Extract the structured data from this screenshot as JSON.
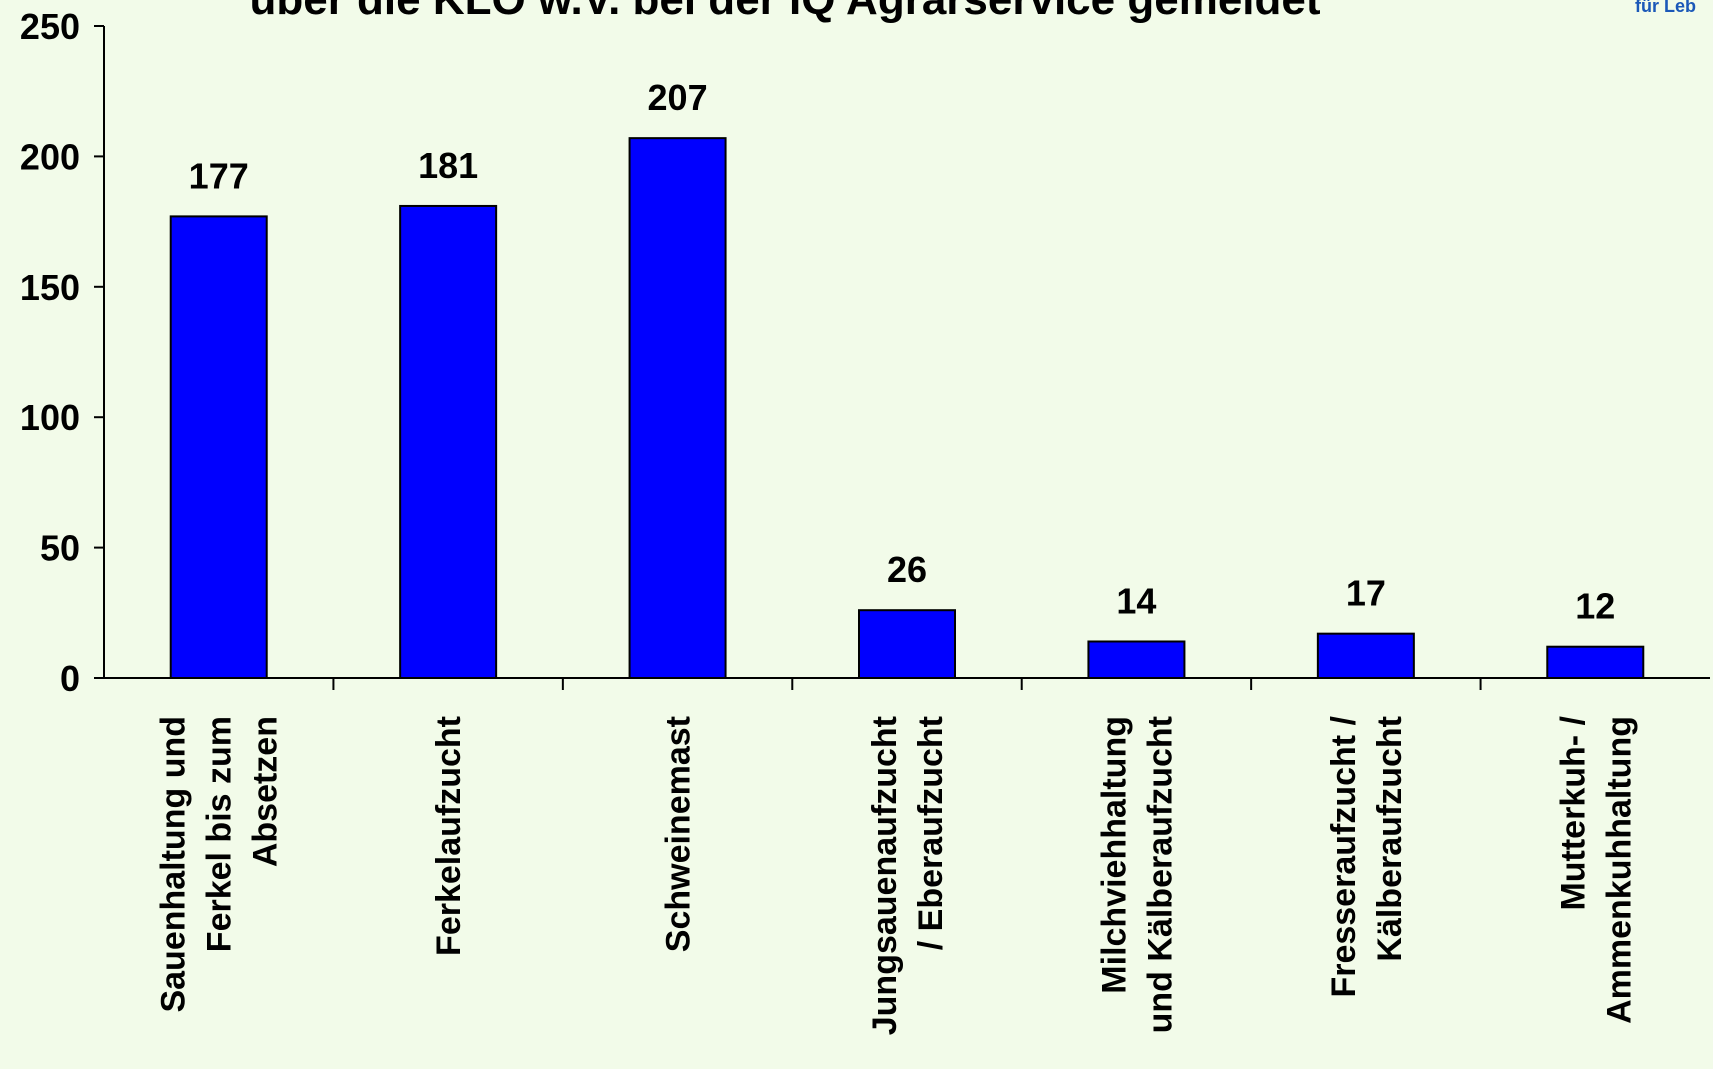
{
  "chart_data": {
    "type": "bar",
    "title": "über die KLO w.V. bei der IQ Agrarservice gemeldet",
    "categories": [
      [
        "Sauenhaltung und",
        "Ferkel bis zum",
        "Absetzen"
      ],
      [
        "Ferkelaufzucht"
      ],
      [
        "Schweinemast"
      ],
      [
        "Jungsauenaufzucht",
        "/ Eberaufzucht"
      ],
      [
        "Milchviehhaltung",
        "und Kälberaufzucht"
      ],
      [
        "Fresseraufzucht /",
        "Kälberaufzucht"
      ],
      [
        "Mutterkuh- /",
        "Ammenkuhhaltung"
      ]
    ],
    "values": [
      177,
      181,
      207,
      26,
      14,
      17,
      12
    ],
    "ylim": [
      0,
      250
    ],
    "yticks": [
      0,
      50,
      100,
      150,
      200,
      250
    ],
    "data_labels": [
      "177",
      "181",
      "207",
      "26",
      "14",
      "17",
      "12"
    ],
    "xlabel": "",
    "ylabel": "",
    "grid": false,
    "bar_color": "#0000ff",
    "bar_outline": "#000000",
    "background": "#f2fbe9"
  },
  "branding": {
    "text": "für Leb",
    "color": "#1b58b8"
  }
}
